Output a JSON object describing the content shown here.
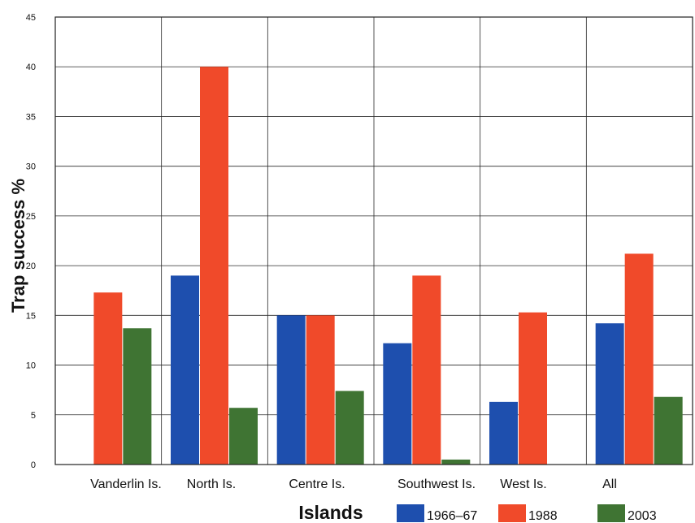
{
  "chart_data": {
    "type": "bar",
    "title": "",
    "xlabel": "Islands",
    "ylabel": "Trap success %",
    "ylim": [
      0,
      45
    ],
    "yticks": [
      0,
      5,
      10,
      15,
      20,
      25,
      30,
      35,
      40,
      45
    ],
    "categories": [
      "Vanderlin Is.",
      "North Is.",
      "Centre Is.",
      "Southwest Is.",
      "West Is.",
      "All"
    ],
    "series": [
      {
        "name": "1966–67",
        "color": "#1e4fae",
        "values": [
          0,
          19,
          15,
          12.2,
          6.3,
          14.2
        ]
      },
      {
        "name": "1988",
        "color": "#f04a2a",
        "values": [
          17.3,
          40,
          15,
          19,
          15.3,
          21.2
        ]
      },
      {
        "name": "2003",
        "color": "#3f7433",
        "values": [
          13.7,
          5.7,
          7.4,
          0.5,
          0,
          6.8
        ]
      }
    ],
    "grid": true,
    "legend": "bottom-right"
  }
}
